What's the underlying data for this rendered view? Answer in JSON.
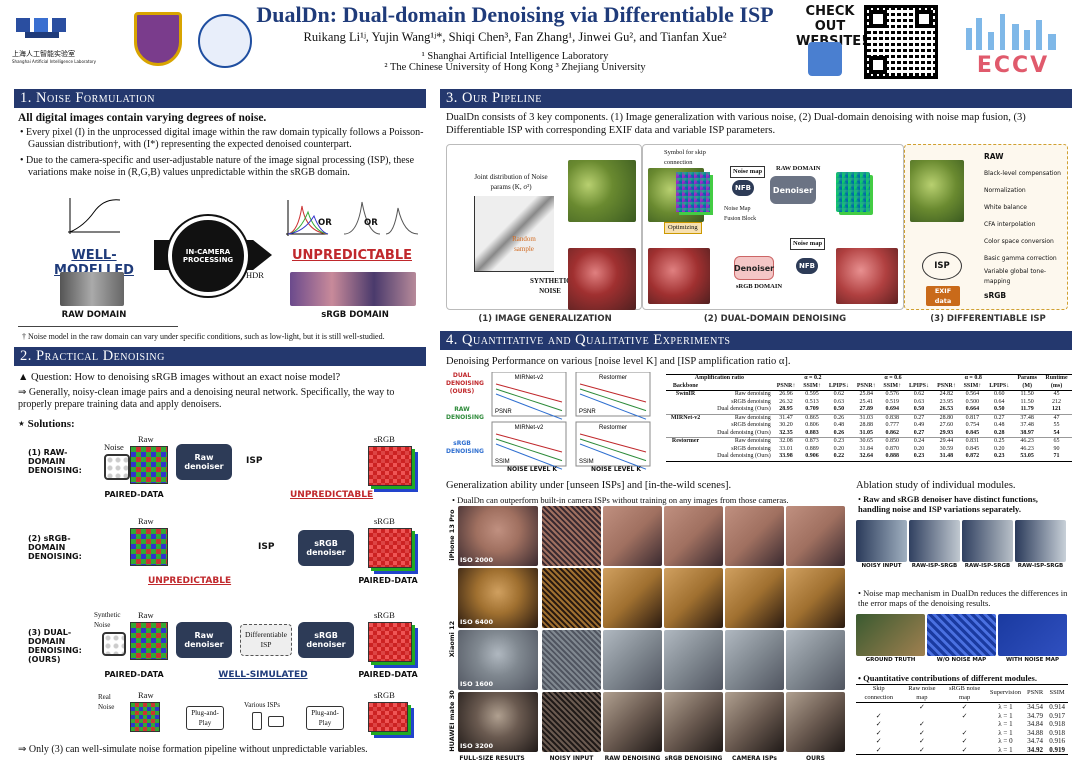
{
  "header": {
    "title": "DualDn: Dual-domain Denoising via Differentiable ISP",
    "authors": "Ruikang Li¹ʲ, Yujin Wang¹ʲ*, Shiqi Chen³, Fan Zhang¹, Jinwei Gu², and Tianfan Xue²",
    "affil1": "¹ Shanghai Artificial Intelligence Laboratory",
    "affil2": "² The Chinese University of Hong Kong  ³ Zhejiang University",
    "logo_lab_cn": "上海人工智能实验室",
    "logo_lab_en": "Shanghai Artificial Intelligence Laboratory",
    "check_out": "CHECK OUT WEBSITE!",
    "eccv": "ECCV"
  },
  "sec1": {
    "title": "1. Noise Formulation",
    "headline": "All digital images contain varying degrees of noise.",
    "bullet1": "Every pixel (I) in the unprocessed digital image within the raw domain typically follows a Poisson-Gaussian distribution†, with (I*) representing the expected denoised counterpart.",
    "bullet2": "Due to the camera-specific and user-adjustable nature of the image signal processing (ISP), these variations make noise in (R,G,B) values unpredictable within the sRGB domain.",
    "well": "WELL-MODELLED",
    "unpred": "UNPREDICTABLE",
    "incam": "IN-CAMERA PROCESSING",
    "hdr": "HDR",
    "or1": "OR",
    "or2": "OR",
    "raw_domain": "RAW DOMAIN",
    "srgb_domain": "sRGB DOMAIN",
    "footnote": "† Noise model in the raw domain can vary under specific conditions, such as low-light, but it is still well-studied."
  },
  "sec2": {
    "title": "2. Practical Denoising",
    "q": "▲ Question: How to denoising sRGB images without an exact noise model?",
    "a": "⇒ Generally, noisy-clean image pairs and a denoising neural network. Specifically, the way to properly prepare training data and apply denoisers.",
    "sol": "⋆ Solutions:",
    "r1": "(1) RAW-DOMAIN DENOISING:",
    "r2": "(2) sRGB-DOMAIN DENOISING:",
    "r3": "(3) DUAL-DOMAIN DENOISING: (OURS)",
    "noise": "Noise",
    "raw": "Raw",
    "srgb": "sRGB",
    "raw_denoiser": "Raw denoiser",
    "srgb_denoiser": "sRGB denoiser",
    "isp": "ISP",
    "diff_isp": "Differentiable ISP",
    "paired": "PAIRED-DATA",
    "unpred": "UNPREDICTABLE",
    "wellsim": "WELL-SIMULATED",
    "syn_noise": "Synthetic Noise",
    "real_noise": "Real Noise",
    "plug": "Plug-and-Play",
    "various": "Various ISPs",
    "conclusion": "⇒ Only (3) can well-simulate noise formation pipeline without unpredictable variables."
  },
  "sec3": {
    "title": "3. Our Pipeline",
    "intro": "DualDn consists of 3 key components. (1) Image generalization with various noise, (2) Dual-domain denoising with noise map fusion, (3) Differentiable ISP with corresponding EXIF data and variable ISP parameters.",
    "joint": "Joint distribution of Noise params (K, σ²)",
    "random": "Random sample",
    "synthetic": "SYNTHETIC NOISE",
    "skip": "Symbol for skip connection",
    "noisemap": "Noise map",
    "nfb": "NFB",
    "nfb_full": "Noise Map Fusion Block",
    "raw_domain": "RAW DOMAIN",
    "srgb_domain": "sRGB DOMAIN",
    "denoiser": "Denoiser",
    "optimizing": "Optimizing",
    "isp": "ISP",
    "exif": "EXIF data",
    "isp_steps": [
      "RAW",
      "Black-level compensation",
      "Normalization",
      "White balance",
      "CFA interpolation",
      "Color space conversion",
      "Basic gamma correction",
      "Variable global tone-mapping",
      "sRGB"
    ],
    "cap1": "(1) IMAGE GENERALIZATION",
    "cap2": "(2) DUAL-DOMAIN DENOISING",
    "cap3": "(3) DIFFERENTIABLE ISP"
  },
  "sec4": {
    "title": "4. Quantitative and Qualitative Experiments",
    "perf": "Denoising Performance on various [noise level K] and [ISP amplification ratio α].",
    "legend": [
      "DUAL DENOISING (OURS)",
      "RAW DENOISING",
      "sRGB DENOISING"
    ],
    "plots": [
      "MIRNet-v2",
      "Restormer",
      "MIRNet-v2",
      "Restormer"
    ],
    "psnr": "PSNR",
    "ssim": "SSIM",
    "xlab": "NOISE LEVEL K",
    "table": {
      "head1": [
        "Amplification ratio",
        "α = 0.2",
        "α = 0.6",
        "α = 0.8",
        "Params",
        "Runtime"
      ],
      "head2": [
        "Backbone",
        "",
        "PSNR↑",
        "SSIM↑",
        "LPIPS↓",
        "PSNR↑",
        "SSIM↑",
        "LPIPS↓",
        "PSNR↑",
        "SSIM↑",
        "LPIPS↓",
        "(M)",
        "(ms)"
      ],
      "rows": [
        [
          "SwinIR",
          "Raw denoising",
          "26.96",
          "0.595",
          "0.62",
          "25.84",
          "0.576",
          "0.62",
          "24.82",
          "0.564",
          "0.60",
          "11.50",
          "45"
        ],
        [
          "",
          "sRGB denoising",
          "26.32",
          "0.513",
          "0.63",
          "25.41",
          "0.519",
          "0.63",
          "23.95",
          "0.500",
          "0.64",
          "11.50",
          "212"
        ],
        [
          "",
          "Dual denoising (Ours)",
          "28.95",
          "0.709",
          "0.50",
          "27.89",
          "0.694",
          "0.50",
          "26.53",
          "0.664",
          "0.50",
          "11.79",
          "121"
        ],
        [
          "MIRNet-v2",
          "Raw denoising",
          "31.47",
          "0.865",
          "0.26",
          "31.03",
          "0.838",
          "0.27",
          "28.80",
          "0.817",
          "0.27",
          "37.48",
          "47"
        ],
        [
          "",
          "sRGB denoising",
          "30.20",
          "0.806",
          "0.48",
          "28.88",
          "0.777",
          "0.49",
          "27.60",
          "0.754",
          "0.48",
          "37.48",
          "55"
        ],
        [
          "",
          "Dual denoising (Ours)",
          "32.35",
          "0.883",
          "0.26",
          "31.05",
          "0.862",
          "0.27",
          "29.93",
          "0.845",
          "0.28",
          "38.97",
          "54"
        ],
        [
          "Restormer",
          "Raw denoising",
          "32.08",
          "0.873",
          "0.23",
          "30.65",
          "0.850",
          "0.24",
          "29.44",
          "0.831",
          "0.25",
          "46.23",
          "65"
        ],
        [
          "",
          "sRGB denoising",
          "33.01",
          "0.889",
          "0.20",
          "31.84",
          "0.870",
          "0.20",
          "30.59",
          "0.845",
          "0.20",
          "46.23",
          "90"
        ],
        [
          "",
          "Dual denoising (Ours)",
          "33.98",
          "0.906",
          "0.22",
          "32.64",
          "0.888",
          "0.23",
          "31.48",
          "0.872",
          "0.23",
          "53.05",
          "71"
        ]
      ]
    },
    "gen_title": "Generalization ability under [unseen ISPs] and [in-the-wild scenes].",
    "gen_bullet": "DualDn can outperform built-in camera ISPs without training on any images from those cameras.",
    "phones": [
      "iPhone 13 Pro",
      "Xiaomi 12",
      "HUAWEI mate 30"
    ],
    "isos": [
      "ISO 2000",
      "ISO 6400",
      "ISO 1600",
      "ISO 3200"
    ],
    "gen_caps": [
      "FULL-SIZE RESULTS",
      "NOISY INPUT",
      "RAW DENOISING",
      "sRGB DENOISING",
      "CAMERA ISPs",
      "OURS"
    ],
    "abl_title": "Ablation study of individual modules.",
    "abl_b1": "Raw and sRGB denoiser have distinct functions, handling noise and ISP variations separately.",
    "abl_caps1": [
      "NOISY INPUT",
      "RAW-ISP-SRGB",
      "RAW-ISP-SRGB",
      "RAW-ISP-SRGB"
    ],
    "abl_b2": "Noise map mechanism in DualDn reduces the differences in the error maps of the denoising results.",
    "abl_caps2": [
      "GROUND TRUTH",
      "W/O NOISE MAP",
      "WITH NOISE MAP"
    ],
    "abl_b3": "Quantitative contributions of different modules.",
    "abl_head": [
      "Skip connection",
      "Raw noise map",
      "sRGB noise map",
      "Supervision",
      "PSNR",
      "SSIM"
    ],
    "abl_rows": [
      [
        "",
        "✓",
        "✓",
        "λ = 1",
        "34.54",
        "0.914"
      ],
      [
        "✓",
        "",
        "✓",
        "λ = 1",
        "34.79",
        "0.917"
      ],
      [
        "✓",
        "✓",
        "",
        "λ = 1",
        "34.84",
        "0.918"
      ],
      [
        "✓",
        "✓",
        "✓",
        "λ = 1",
        "34.88",
        "0.918"
      ],
      [
        "✓",
        "✓",
        "✓",
        "λ = 0",
        "34.74",
        "0.916"
      ],
      [
        "✓",
        "✓",
        "✓",
        "λ = 1",
        "34.92",
        "0.919"
      ]
    ]
  },
  "colors": {
    "navy": "#24386e",
    "red": "#c0282c",
    "green": "#2e8b3a",
    "blue": "#2f6fd0"
  }
}
